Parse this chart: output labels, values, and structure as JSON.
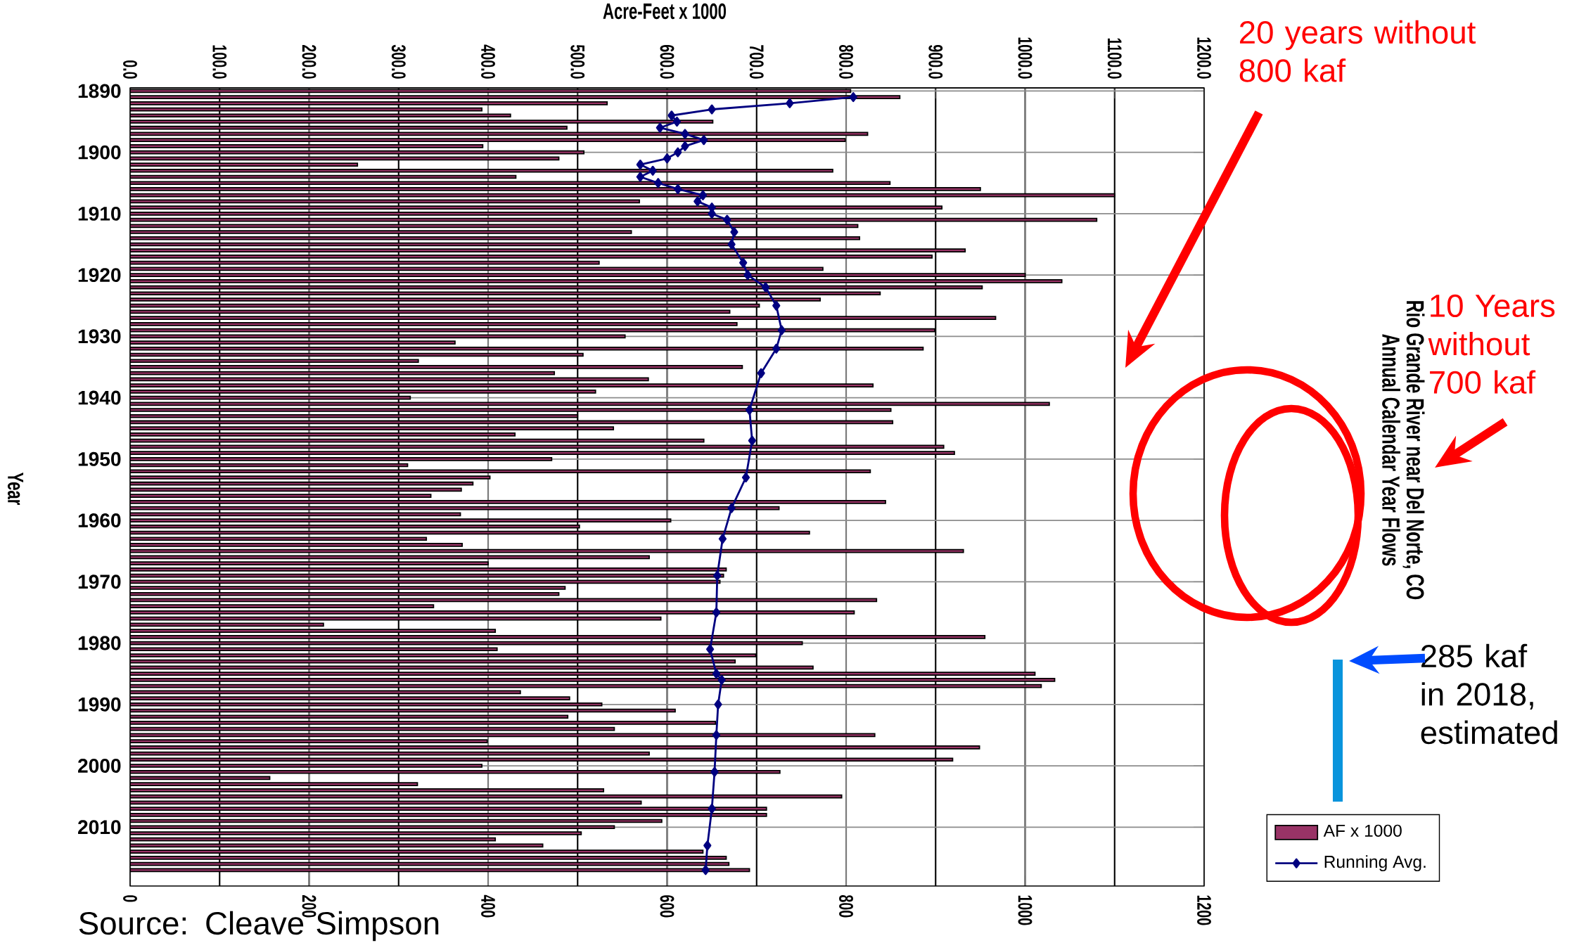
{
  "chart_data": {
    "type": "bar",
    "orientation": "horizontal",
    "title": "Rio Grande River near Del Norte, CO",
    "subtitle": "Annual Calendar Year Flows",
    "x2label": "Acre-Feet x 1000",
    "ylabel": "Year",
    "x": [
      1890,
      1891,
      1892,
      1893,
      1894,
      1895,
      1896,
      1897,
      1898,
      1899,
      1900,
      1901,
      1902,
      1903,
      1904,
      1905,
      1906,
      1907,
      1908,
      1909,
      1910,
      1911,
      1912,
      1913,
      1914,
      1915,
      1916,
      1917,
      1918,
      1919,
      1920,
      1921,
      1922,
      1923,
      1924,
      1925,
      1926,
      1927,
      1928,
      1929,
      1930,
      1931,
      1932,
      1933,
      1934,
      1935,
      1936,
      1937,
      1938,
      1939,
      1940,
      1941,
      1942,
      1943,
      1944,
      1945,
      1946,
      1947,
      1948,
      1949,
      1950,
      1951,
      1952,
      1953,
      1954,
      1955,
      1956,
      1957,
      1958,
      1959,
      1960,
      1961,
      1962,
      1963,
      1964,
      1965,
      1966,
      1967,
      1968,
      1969,
      1970,
      1971,
      1972,
      1973,
      1974,
      1975,
      1976,
      1977,
      1978,
      1979,
      1980,
      1981,
      1982,
      1983,
      1984,
      1985,
      1986,
      1987,
      1988,
      1989,
      1990,
      1991,
      1992,
      1993,
      1994,
      1995,
      1996,
      1997,
      1998,
      1999,
      2000,
      2001,
      2002,
      2003,
      2004,
      2005,
      2006,
      2007,
      2008,
      2009,
      2010,
      2011,
      2012,
      2013,
      2014,
      2015,
      2016,
      2017
    ],
    "series": [
      {
        "name": "AF x 1000",
        "color": "#993366",
        "values": [
          805,
          860,
          533,
          393,
          425,
          651,
          488,
          824,
          799,
          394,
          507,
          479,
          254,
          785,
          431,
          849,
          950,
          1100,
          569,
          907,
          650,
          1080,
          813,
          560,
          815,
          670,
          933,
          896,
          524,
          774,
          1000,
          1041,
          952,
          838,
          771,
          703,
          670,
          967,
          678,
          899,
          553,
          363,
          886,
          506,
          322,
          684,
          474,
          579,
          830,
          520,
          313,
          1027,
          850,
          500,
          852,
          540,
          430,
          641,
          909,
          921,
          471,
          310,
          827,
          402,
          383,
          370,
          336,
          844,
          725,
          369,
          604,
          502,
          759,
          331,
          371,
          931,
          580,
          400,
          666,
          663,
          659,
          486,
          479,
          834,
          339,
          809,
          593,
          216,
          408,
          955,
          751,
          410,
          699,
          676,
          763,
          1011,
          1033,
          1018,
          436,
          491,
          527,
          609,
          489,
          654,
          541,
          832,
          399,
          949,
          580,
          919,
          393,
          726,
          156,
          321,
          529,
          795,
          571,
          711,
          711,
          594,
          541,
          504,
          408,
          461,
          640,
          666,
          669,
          692
        ]
      },
      {
        "name": "Running Avg.",
        "type": "line",
        "color": "#000080",
        "marker": "diamond",
        "x": [
          1891,
          1892,
          1893,
          1894,
          1895,
          1896,
          1897,
          1898,
          1899,
          1900,
          1901,
          1902,
          1903,
          1904,
          1905,
          1906,
          1907,
          1908,
          1909,
          1910,
          1911,
          1913,
          1915,
          1918,
          1920,
          1922,
          1925,
          1929,
          1932,
          1936,
          1942,
          1947,
          1953,
          1958,
          1963,
          1969,
          1975,
          1981,
          1985,
          1986,
          1990,
          1995,
          2001,
          2007,
          2013,
          2017
        ],
        "values": [
          808,
          737,
          650,
          605,
          611,
          592,
          620,
          641,
          620,
          612,
          600,
          570,
          584,
          570,
          590,
          612,
          640,
          634,
          650,
          650,
          667,
          675,
          672,
          685,
          690,
          710,
          722,
          728,
          722,
          705,
          692,
          695,
          688,
          672,
          662,
          656,
          655,
          648,
          655,
          661,
          657,
          655,
          653,
          650,
          645,
          643
        ]
      }
    ],
    "xlim": [
      0,
      1200
    ],
    "xticks": [
      0,
      200,
      400,
      600,
      800,
      1000,
      1200
    ],
    "x2lim": [
      0,
      1200
    ],
    "x2ticks": [
      {
        "value": 0,
        "label": "0.0"
      },
      {
        "value": 100,
        "label": "100.0"
      },
      {
        "value": 200,
        "label": "200.0"
      },
      {
        "value": 300,
        "label": "300.0"
      },
      {
        "value": 400,
        "label": "400.0"
      },
      {
        "value": 500,
        "label": "500.0"
      },
      {
        "value": 600,
        "label": "600.0"
      },
      {
        "value": 700,
        "label": "700.0"
      },
      {
        "value": 800,
        "label": "800.0"
      },
      {
        "value": 900,
        "label": "900.0"
      },
      {
        "value": 1000,
        "label": "1000.0"
      },
      {
        "value": 1100,
        "label": "1100.0"
      },
      {
        "value": 1200,
        "label": "1200.0"
      }
    ],
    "ylim": [
      2019.6,
      1889.5
    ],
    "yticks": [
      1890,
      1900,
      1910,
      1920,
      1930,
      1940,
      1950,
      1960,
      1970,
      1980,
      1990,
      2000,
      2010
    ],
    "grid": true,
    "legend": "bottom right",
    "annotations": [
      "20 years without 800 kaf",
      "10 Years without 700 kaf",
      "285 kaf in 2018, estimated",
      "Source: Cleave Simpson"
    ]
  }
}
